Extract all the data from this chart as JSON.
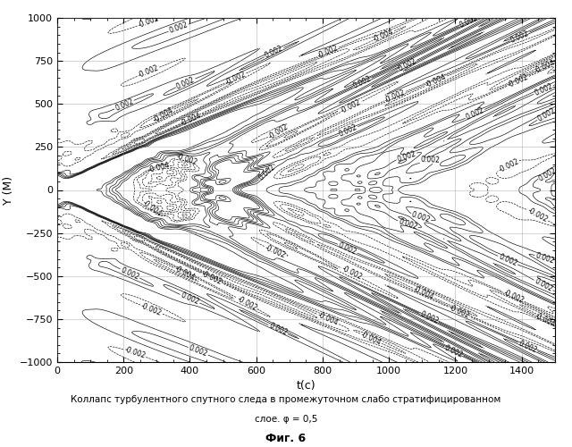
{
  "title": "",
  "xlabel": "t(c)",
  "ylabel": "Y (M)",
  "xlim": [
    0,
    1500
  ],
  "ylim": [
    -1000,
    1000
  ],
  "xticks": [
    0,
    200,
    400,
    600,
    800,
    1000,
    1200,
    1400
  ],
  "yticks": [
    -1000,
    -750,
    -500,
    -250,
    0,
    250,
    500,
    750,
    1000
  ],
  "caption_line1": "Коллапс турбулентного спутного следа в промежуточном слабо стратифицированном",
  "caption_line2": "слое. φ = 0,5",
  "caption_line3": "Фиг. 6",
  "background_color": "#ffffff",
  "line_color": "#000000",
  "grid_color": "#888888"
}
